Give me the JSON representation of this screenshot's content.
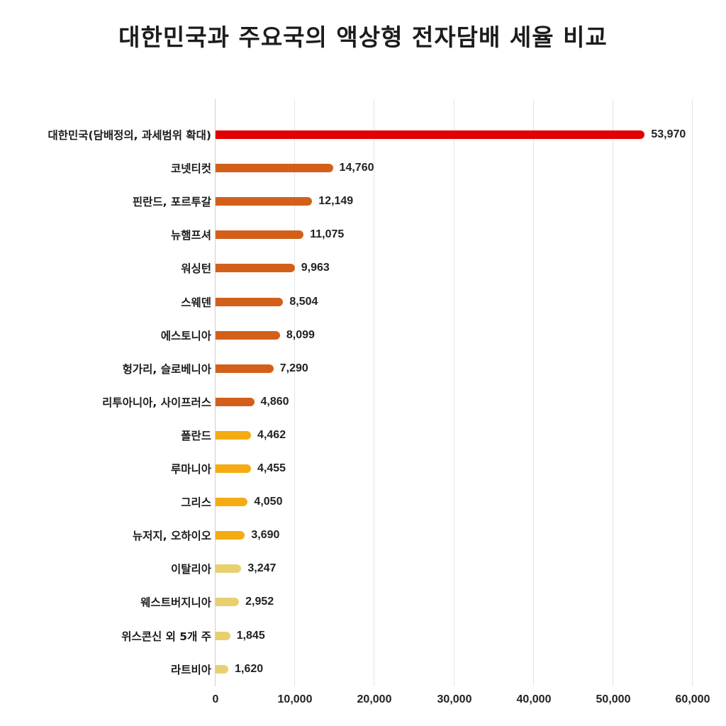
{
  "chart_data": {
    "type": "bar",
    "orientation": "horizontal",
    "title": "대한민국과 주요국의 액상형 전자담배 세율 비교",
    "xlabel": "",
    "ylabel": "",
    "xlim": [
      0,
      60000
    ],
    "xticks": [
      0,
      10000,
      20000,
      30000,
      40000,
      50000,
      60000
    ],
    "xtick_labels": [
      "0",
      "10,000",
      "20,000",
      "30,000",
      "40,000",
      "50,000",
      "60,000"
    ],
    "grid": true,
    "legend": null,
    "categories": [
      "대한민국(담배정의, 과세범위 확대)",
      "코넷티컷",
      "핀란드, 포르투갈",
      "뉴햄프셔",
      "워싱턴",
      "스웨덴",
      "에스토니아",
      "헝가리, 슬로베니아",
      "리투아니아, 사이프러스",
      "폴란드",
      "루마니아",
      "그리스",
      "뉴저지, 오하이오",
      "이탈리아",
      "웨스트버지니아",
      "위스콘신 외 5개 주",
      "라트비아"
    ],
    "values": [
      53970,
      14760,
      12149,
      11075,
      9963,
      8504,
      8099,
      7290,
      4860,
      4462,
      4455,
      4050,
      3690,
      3247,
      2952,
      1845,
      1620
    ],
    "value_labels": [
      "53,970",
      "14,760",
      "12,149",
      "11,075",
      "9,963",
      "8,504",
      "8,099",
      "7,290",
      "4,860",
      "4,462",
      "4,455",
      "4,050",
      "3,690",
      "3,247",
      "2,952",
      "1,845",
      "1,620"
    ],
    "bar_colors": [
      "#e00000",
      "#d2601a",
      "#d2601a",
      "#d2601a",
      "#d2601a",
      "#d2601a",
      "#d2601a",
      "#d2601a",
      "#d2601a",
      "#f5ab12",
      "#f5ab12",
      "#f5ab12",
      "#f5ab12",
      "#e8d070",
      "#e8d070",
      "#e8d070",
      "#e8d070"
    ]
  },
  "colors": {
    "highlight": "#e00000",
    "high": "#d2601a",
    "mid": "#f5ab12",
    "low": "#e8d070"
  }
}
